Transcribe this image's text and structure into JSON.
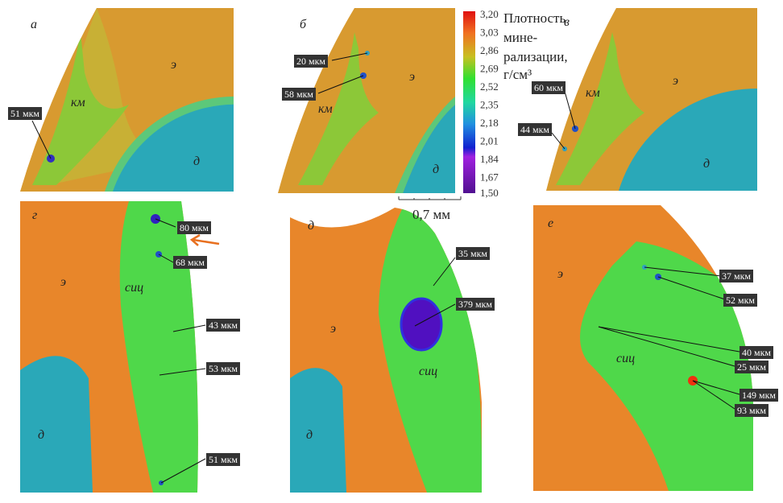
{
  "colorbar": {
    "title_lines": [
      "Плотность",
      "мине-",
      "рализации,",
      "г/см³"
    ],
    "ticks": [
      "3,20",
      "3,03",
      "2,86",
      "2,69",
      "2,52",
      "2,35",
      "2,18",
      "2,01",
      "1,84",
      "1,67",
      "1,50"
    ],
    "colors": [
      "#e02010",
      "#f08020",
      "#c8c020",
      "#30e030",
      "#20d0a0",
      "#2090e0",
      "#1020d0",
      "#a020e0",
      "#6010a0"
    ]
  },
  "scale_bar": {
    "label": "0,7 мм"
  },
  "colors": {
    "enamel": "#e8862a",
    "zone": "#4fd84a",
    "dentin": "#2aa8b8",
    "defect": "#2a40d0"
  },
  "panels": {
    "a": {
      "letter": "а",
      "regions": [
        "км",
        "э",
        "д"
      ],
      "labels": [
        "51 мкм"
      ]
    },
    "b": {
      "letter": "б",
      "regions": [
        "км",
        "э",
        "д"
      ],
      "labels": [
        "20 мкм",
        "58 мкм"
      ]
    },
    "v": {
      "letter": "в",
      "regions": [
        "км",
        "э",
        "д"
      ],
      "labels": [
        "60 мкм",
        "44 мкм"
      ]
    },
    "g": {
      "letter": "г",
      "regions": [
        "э",
        "сиц",
        "д"
      ],
      "labels": [
        "80 мкм",
        "68 мкм",
        "43 мкм",
        "53 мкм",
        "51 мкм"
      ]
    },
    "d": {
      "letter": "д",
      "regions": [
        "э",
        "сиц",
        "д"
      ],
      "labels": [
        "35 мкм",
        "379 мкм"
      ]
    },
    "e": {
      "letter": "е",
      "regions": [
        "э",
        "сиц"
      ],
      "labels": [
        "37 мкм",
        "52 мкм",
        "40 мкм",
        "25 мкм",
        "149 мкм",
        "93 мкм"
      ]
    }
  }
}
